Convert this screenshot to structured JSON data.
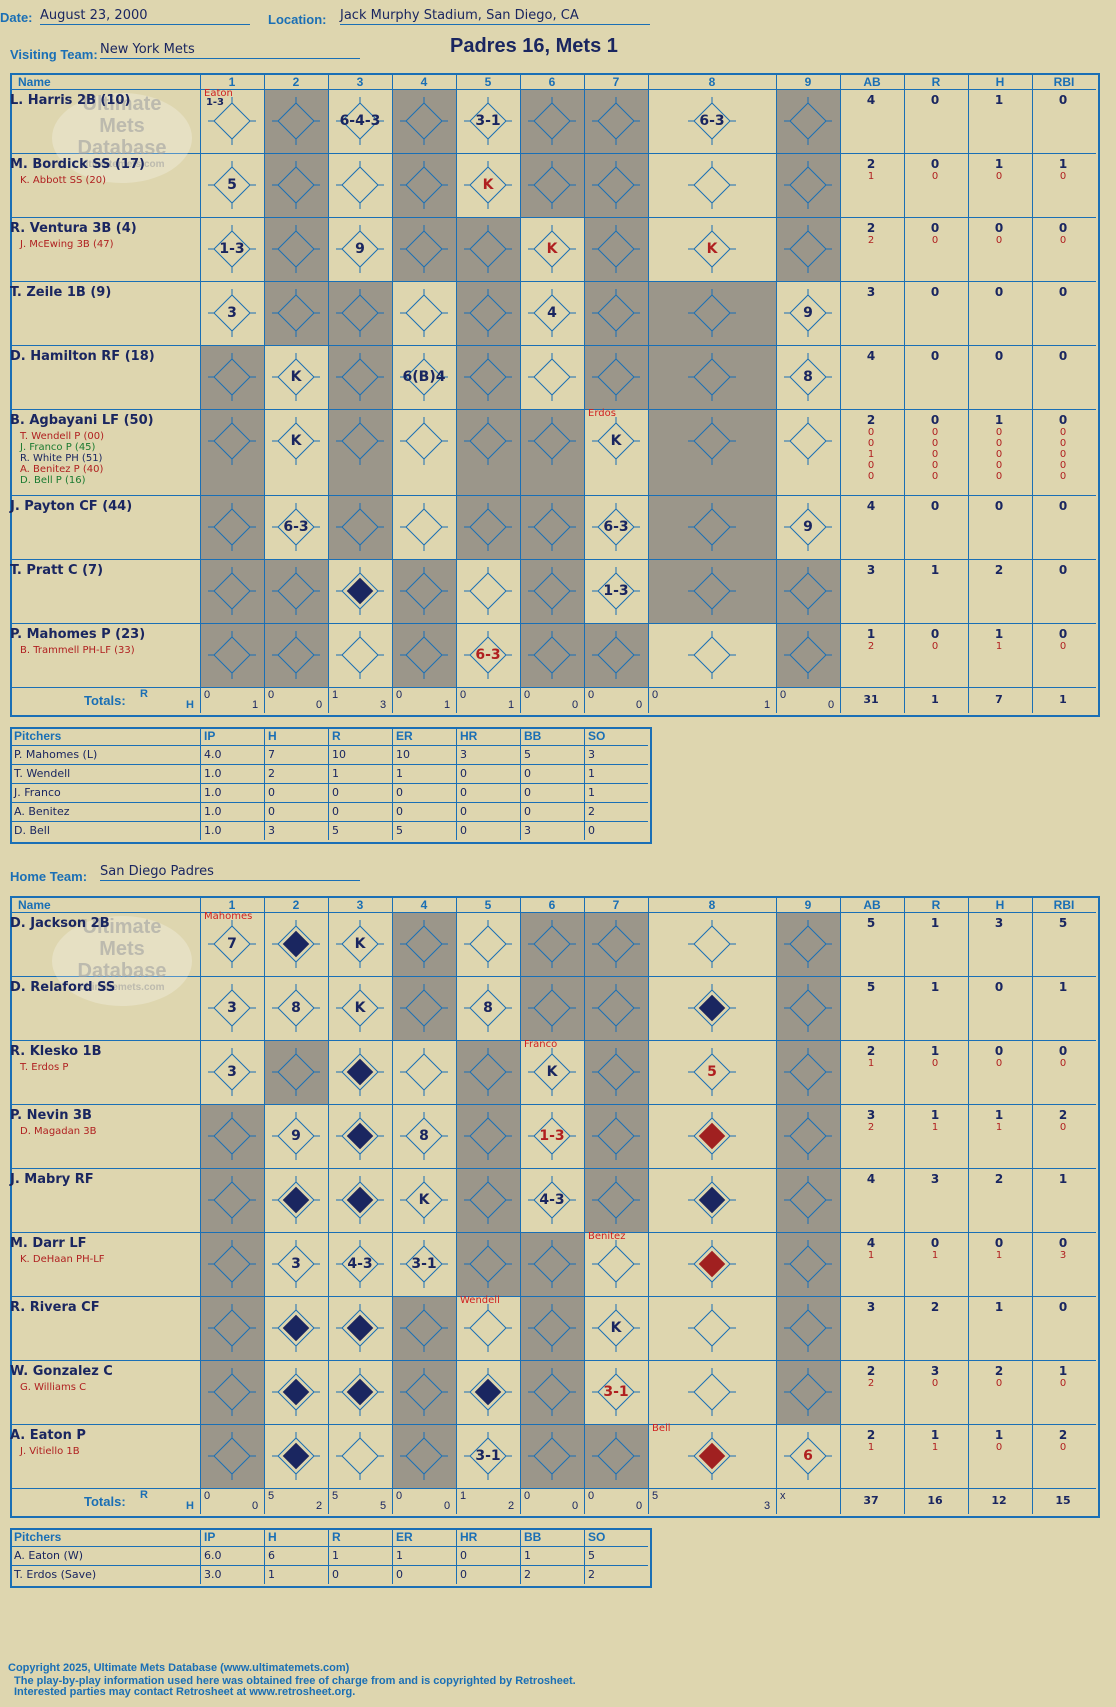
{
  "header": {
    "date_label": "Date:",
    "date": "August 23, 2000",
    "location_label": "Location:",
    "location": "Jack Murphy Stadium, San Diego, CA",
    "visiting_label": "Visiting Team:",
    "visiting_team": "New York Mets",
    "home_label": "Home Team:",
    "home_team": "San Diego Padres",
    "title": "Padres 16, Mets 1"
  },
  "columns": [
    "Name",
    "1",
    "2",
    "3",
    "4",
    "5",
    "6",
    "7",
    "8",
    "9",
    "AB",
    "R",
    "H",
    "RBI"
  ],
  "watermark": [
    "Ultimate",
    "Mets",
    "Database",
    "ultimatemets.com"
  ],
  "visitors": {
    "rows": [
      {
        "name": "L. Harris 2B (10)",
        "subs": [],
        "stats": [
          [
            "4",
            "0",
            "1",
            "0"
          ]
        ]
      },
      {
        "name": "M. Bordick SS (17)",
        "subs": [
          "K. Abbott SS (20)"
        ],
        "stats": [
          [
            "2",
            "0",
            "1",
            "1"
          ],
          [
            "1",
            "0",
            "0",
            "0"
          ]
        ]
      },
      {
        "name": "R. Ventura 3B (4)",
        "subs": [
          "J. McEwing 3B (47)"
        ],
        "stats": [
          [
            "2",
            "0",
            "0",
            "0"
          ],
          [
            "2",
            "0",
            "0",
            "0"
          ]
        ]
      },
      {
        "name": "T. Zeile 1B (9)",
        "subs": [],
        "stats": [
          [
            "3",
            "0",
            "0",
            "0"
          ]
        ]
      },
      {
        "name": "D. Hamilton RF (18)",
        "subs": [],
        "stats": [
          [
            "4",
            "0",
            "0",
            "0"
          ]
        ]
      },
      {
        "name": "B. Agbayani LF (50)",
        "subs": [
          "T. Wendell P (00)",
          "J. Franco P (45)",
          "R. White PH (51)",
          "A. Benitez P (40)",
          "D. Bell P (16)"
        ],
        "stats": [
          [
            "2",
            "0",
            "1",
            "0"
          ],
          [
            "0",
            "0",
            "0",
            "0"
          ],
          [
            "0",
            "0",
            "0",
            "0"
          ],
          [
            "1",
            "0",
            "0",
            "0"
          ],
          [
            "0",
            "0",
            "0",
            "0"
          ],
          [
            "0",
            "0",
            "0",
            "0"
          ]
        ]
      },
      {
        "name": "J. Payton CF (44)",
        "subs": [],
        "stats": [
          [
            "4",
            "0",
            "0",
            "0"
          ]
        ]
      },
      {
        "name": "T. Pratt C (7)",
        "subs": [],
        "stats": [
          [
            "3",
            "1",
            "2",
            "0"
          ]
        ]
      },
      {
        "name": "P. Mahomes P (23)",
        "subs": [
          "B. Trammell PH-LF (33)"
        ],
        "stats": [
          [
            "1",
            "0",
            "1",
            "0"
          ],
          [
            "2",
            "0",
            "1",
            "0"
          ]
        ]
      }
    ],
    "totals_label": "Totals:",
    "rh": [
      "R",
      "H"
    ],
    "inning_totals": [
      [
        "0",
        "1"
      ],
      [
        "0",
        "0"
      ],
      [
        "1",
        "3"
      ],
      [
        "0",
        "1"
      ],
      [
        "0",
        "1"
      ],
      [
        "0",
        "0"
      ],
      [
        "0",
        "0"
      ],
      [
        "0",
        "1"
      ],
      [
        "0",
        "0"
      ]
    ],
    "totals": [
      "31",
      "1",
      "7",
      "1"
    ]
  },
  "visitor_pitchers": {
    "headers": [
      "Pitchers",
      "IP",
      "H",
      "R",
      "ER",
      "HR",
      "BB",
      "SO"
    ],
    "rows": [
      [
        "P. Mahomes (L)",
        "4.0",
        "7",
        "10",
        "10",
        "3",
        "5",
        "3"
      ],
      [
        "T. Wendell",
        "1.0",
        "2",
        "1",
        "1",
        "0",
        "0",
        "1"
      ],
      [
        "J. Franco",
        "1.0",
        "0",
        "0",
        "0",
        "0",
        "0",
        "1"
      ],
      [
        "A. Benitez",
        "1.0",
        "0",
        "0",
        "0",
        "0",
        "0",
        "2"
      ],
      [
        "D. Bell",
        "1.0",
        "3",
        "5",
        "5",
        "0",
        "3",
        "0"
      ]
    ]
  },
  "home": {
    "rows": [
      {
        "name": "D. Jackson 2B",
        "subs": [],
        "stats": [
          [
            "5",
            "1",
            "3",
            "5"
          ]
        ]
      },
      {
        "name": "D. Relaford SS",
        "subs": [],
        "stats": [
          [
            "5",
            "1",
            "0",
            "1"
          ]
        ]
      },
      {
        "name": "R. Klesko 1B",
        "subs": [
          "T. Erdos P"
        ],
        "stats": [
          [
            "2",
            "1",
            "0",
            "0"
          ],
          [
            "1",
            "0",
            "0",
            "0"
          ]
        ]
      },
      {
        "name": "P. Nevin 3B",
        "subs": [
          "D. Magadan 3B"
        ],
        "stats": [
          [
            "3",
            "1",
            "1",
            "2"
          ],
          [
            "2",
            "1",
            "1",
            "0"
          ]
        ]
      },
      {
        "name": "J. Mabry RF",
        "subs": [],
        "stats": [
          [
            "4",
            "3",
            "2",
            "1"
          ]
        ]
      },
      {
        "name": "M. Darr LF",
        "subs": [
          "K. DeHaan PH-LF"
        ],
        "stats": [
          [
            "4",
            "0",
            "0",
            "0"
          ],
          [
            "1",
            "1",
            "1",
            "3"
          ]
        ]
      },
      {
        "name": "R. Rivera CF",
        "subs": [],
        "stats": [
          [
            "3",
            "2",
            "1",
            "0"
          ]
        ]
      },
      {
        "name": "W. Gonzalez C",
        "subs": [
          "G. Williams C"
        ],
        "stats": [
          [
            "2",
            "3",
            "2",
            "1"
          ],
          [
            "2",
            "0",
            "0",
            "0"
          ]
        ]
      },
      {
        "name": "A. Eaton P",
        "subs": [
          "J. Vitiello 1B"
        ],
        "stats": [
          [
            "2",
            "1",
            "1",
            "2"
          ],
          [
            "1",
            "1",
            "0",
            "0"
          ]
        ]
      }
    ],
    "totals_label": "Totals:",
    "rh": [
      "R",
      "H"
    ],
    "inning_totals": [
      [
        "0",
        "0"
      ],
      [
        "5",
        "2"
      ],
      [
        "5",
        "5"
      ],
      [
        "0",
        "0"
      ],
      [
        "1",
        "2"
      ],
      [
        "0",
        "0"
      ],
      [
        "0",
        "0"
      ],
      [
        "5",
        "3"
      ],
      [
        "x",
        ""
      ]
    ],
    "totals": [
      "37",
      "16",
      "12",
      "15"
    ]
  },
  "home_pitchers": {
    "headers": [
      "Pitchers",
      "IP",
      "H",
      "R",
      "ER",
      "HR",
      "BB",
      "SO"
    ],
    "rows": [
      [
        "A. Eaton (W)",
        "6.0",
        "6",
        "1",
        "1",
        "0",
        "1",
        "5"
      ],
      [
        "T. Erdos (Save)",
        "3.0",
        "1",
        "0",
        "0",
        "0",
        "2",
        "2"
      ]
    ]
  },
  "visitor_marks": [
    {
      "r": 0,
      "c": 1,
      "t": "1-3",
      "small": true
    },
    {
      "r": 0,
      "c": 3,
      "t": "6-4-3"
    },
    {
      "r": 0,
      "c": 5,
      "t": "3-1"
    },
    {
      "r": 0,
      "c": 8,
      "t": "6-3"
    },
    {
      "r": 1,
      "c": 1,
      "t": "5"
    },
    {
      "r": 1,
      "c": 5,
      "t": "K",
      "red": true
    },
    {
      "r": 2,
      "c": 1,
      "t": "1-3"
    },
    {
      "r": 2,
      "c": 3,
      "t": "9"
    },
    {
      "r": 2,
      "c": 6,
      "t": "K",
      "red": true
    },
    {
      "r": 2,
      "c": 8,
      "t": "K",
      "red": true
    },
    {
      "r": 3,
      "c": 1,
      "t": "3"
    },
    {
      "r": 3,
      "c": 6,
      "t": "4"
    },
    {
      "r": 3,
      "c": 9,
      "t": "9"
    },
    {
      "r": 4,
      "c": 2,
      "t": "K"
    },
    {
      "r": 4,
      "c": 4,
      "t": "6(B)4"
    },
    {
      "r": 4,
      "c": 9,
      "t": "8"
    },
    {
      "r": 5,
      "c": 2,
      "t": "K"
    },
    {
      "r": 5,
      "c": 7,
      "t": "K"
    },
    {
      "r": 6,
      "c": 2,
      "t": "6-3"
    },
    {
      "r": 6,
      "c": 7,
      "t": "6-3"
    },
    {
      "r": 6,
      "c": 9,
      "t": "9"
    },
    {
      "r": 7,
      "c": 7,
      "t": "1-3"
    },
    {
      "r": 8,
      "c": 5,
      "t": "6-3",
      "red": true
    }
  ],
  "visitor_notes": [
    {
      "r": 0,
      "c": 1,
      "t": "Eaton"
    },
    {
      "r": 5,
      "c": 7,
      "t": "Erdos"
    }
  ],
  "home_marks": [
    {
      "r": 0,
      "c": 1,
      "t": "7"
    },
    {
      "r": 0,
      "c": 3,
      "t": "K"
    },
    {
      "r": 1,
      "c": 1,
      "t": "3"
    },
    {
      "r": 1,
      "c": 2,
      "t": "8"
    },
    {
      "r": 1,
      "c": 3,
      "t": "K"
    },
    {
      "r": 1,
      "c": 5,
      "t": "8"
    },
    {
      "r": 2,
      "c": 1,
      "t": "3"
    },
    {
      "r": 2,
      "c": 6,
      "t": "K"
    },
    {
      "r": 2,
      "c": 8,
      "t": "5",
      "red": true
    },
    {
      "r": 3,
      "c": 2,
      "t": "9"
    },
    {
      "r": 3,
      "c": 4,
      "t": "8"
    },
    {
      "r": 3,
      "c": 6,
      "t": "1-3",
      "red": true
    },
    {
      "r": 4,
      "c": 4,
      "t": "K"
    },
    {
      "r": 4,
      "c": 6,
      "t": "4-3"
    },
    {
      "r": 5,
      "c": 2,
      "t": "3"
    },
    {
      "r": 5,
      "c": 3,
      "t": "4-3"
    },
    {
      "r": 5,
      "c": 4,
      "t": "3-1"
    },
    {
      "r": 6,
      "c": 7,
      "t": "K"
    },
    {
      "r": 7,
      "c": 7,
      "t": "3-1",
      "red": true
    },
    {
      "r": 8,
      "c": 5,
      "t": "3-1"
    },
    {
      "r": 8,
      "c": 9,
      "t": "6",
      "red": true
    }
  ],
  "home_notes": [
    {
      "r": 0,
      "c": 1,
      "t": "Mahomes"
    },
    {
      "r": 2,
      "c": 6,
      "t": "Franco"
    },
    {
      "r": 5,
      "c": 7,
      "t": "Benitez"
    },
    {
      "r": 6,
      "c": 5,
      "t": "Wendell"
    },
    {
      "r": 8,
      "c": 8,
      "t": "Bell"
    }
  ],
  "home_runs": [
    {
      "r": 0,
      "c": 2,
      "color": "#1a2660"
    },
    {
      "r": 1,
      "c": 8,
      "color": "#1a2660"
    },
    {
      "r": 2,
      "c": 3,
      "color": "#1a2660"
    },
    {
      "r": 3,
      "c": 3,
      "color": "#1a2660"
    },
    {
      "r": 3,
      "c": 8,
      "color": "#a02020"
    },
    {
      "r": 4,
      "c": 2,
      "color": "#1a2660"
    },
    {
      "r": 4,
      "c": 3,
      "color": "#1a2660"
    },
    {
      "r": 4,
      "c": 8,
      "color": "#1a2660"
    },
    {
      "r": 5,
      "c": 8,
      "color": "#a02020"
    },
    {
      "r": 6,
      "c": 2,
      "color": "#1a2660"
    },
    {
      "r": 6,
      "c": 3,
      "color": "#1a2660"
    },
    {
      "r": 7,
      "c": 2,
      "color": "#1a2660"
    },
    {
      "r": 7,
      "c": 3,
      "color": "#1a2660"
    },
    {
      "r": 7,
      "c": 5,
      "color": "#1a2660"
    },
    {
      "r": 8,
      "c": 2,
      "color": "#1a2660"
    },
    {
      "r": 8,
      "c": 8,
      "color": "#a02020"
    }
  ],
  "visitor_scored": [
    {
      "r": 7,
      "c": 3,
      "color": "#1a2660"
    }
  ],
  "footer": [
    "Copyright 2025, Ultimate Mets Database (www.ultimatemets.com)",
    "The play-by-play information used here was obtained free of charge from and is copyrighted by Retrosheet.",
    "Interested parties may contact Retrosheet at www.retrosheet.org."
  ]
}
